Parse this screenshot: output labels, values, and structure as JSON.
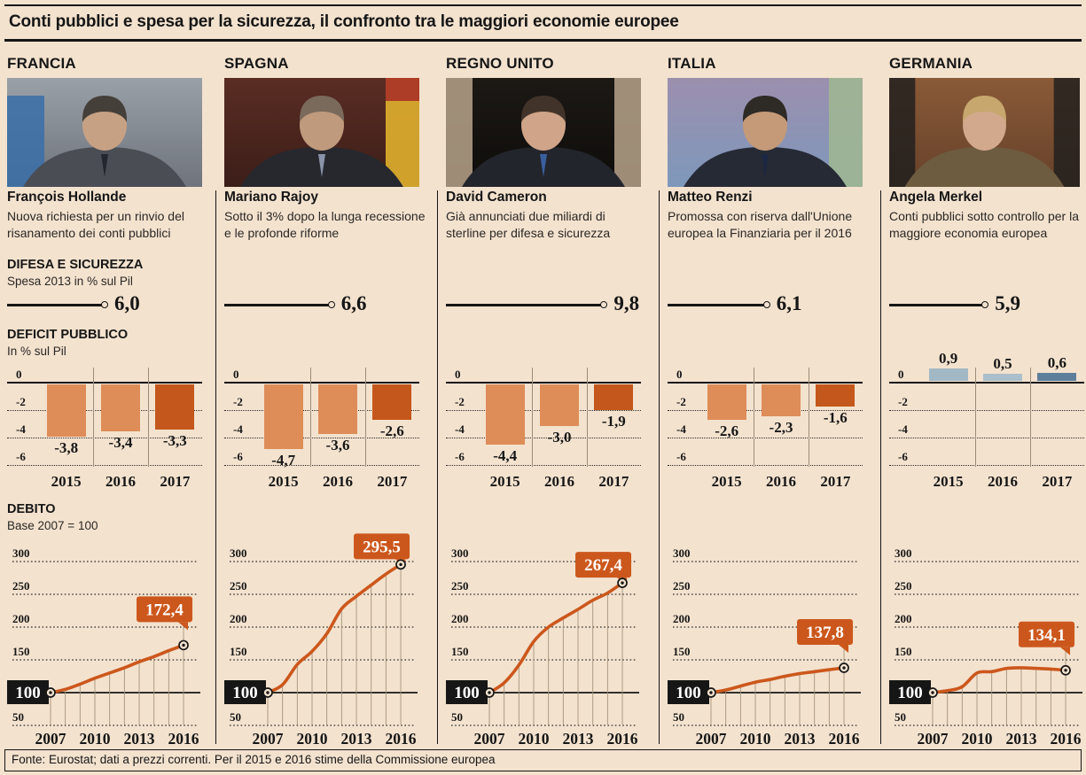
{
  "title": "Conti pubblici e spesa per la sicurezza, il confronto tra le maggiori economie europee",
  "footer": "Fonte: Eurostat; dati a prezzi correnti. Per il 2015 e 2016 stime della Commissione europea",
  "sections": {
    "spesa": {
      "title": "DIFESA E SICUREZZA",
      "subtitle": "Spesa 2013 in % sul Pil"
    },
    "deficit": {
      "title": "DEFICIT PUBBLICO",
      "subtitle": "In % sul Pil"
    },
    "debito": {
      "title": "DEBITO",
      "subtitle": "Base 2007 = 100"
    }
  },
  "colors": {
    "background": "#F3E2CE",
    "ink": "#161616",
    "accent_orange": "#CC571C",
    "bar_light_orange": "#DE8D58",
    "germany_bar_light": "#A2B8C5",
    "germany_bar_mid": "#AABECB",
    "germany_bar_dark": "#5E7F9B",
    "drop_line": "#A5937C",
    "label_text": "#FFFFFF"
  },
  "columns": [
    {
      "country": "FRANCIA",
      "leader": "François Hollande",
      "description": "Nuova richiesta per un rinvio del risanamento dei conti pubblici",
      "photo": {
        "subject": "François Hollande",
        "bg1": "#9aa0a8",
        "bg2": "#6f747c",
        "accent": "#3a6ea8",
        "accent_side": "left",
        "suit": "#4a4d54",
        "skin": "#c7a184",
        "hair": "#453f3a",
        "tie": "#23262e"
      }
    },
    {
      "country": "SPAGNA",
      "leader": "Mariano Rajoy",
      "description": "Sotto il 3% dopo la lunga recessione e le profonde riforme",
      "photo": {
        "subject": "Mariano Rajoy",
        "bg1": "#5a2d24",
        "bg2": "#3c1e18",
        "accent": "#e0b02e",
        "accent2": "#a83226",
        "accent_side": "right",
        "suit": "#26282e",
        "skin": "#c09a7c",
        "hair": "#7a6a5c",
        "tie": "#8a93a8"
      }
    },
    {
      "country": "REGNO UNITO",
      "leader": "David Cameron",
      "description": "Già annunciati due miliardi di sterline per difesa e sicurezza",
      "photo": {
        "subject": "David Cameron",
        "bg1": "#1c1915",
        "bg2": "#0e0c0a",
        "accent": "#c2ad92",
        "accent_side": "sides",
        "suit": "#23252c",
        "skin": "#cfa488",
        "hair": "#42332a",
        "tie": "#3a5f9e"
      }
    },
    {
      "country": "ITALIA",
      "leader": "Matteo Renzi",
      "description": "Promossa con riserva dall'Unione europea la Finanziaria per il 2016",
      "photo": {
        "subject": "Matteo Renzi",
        "bg1": "#9c8fae",
        "bg2": "#7e98bb",
        "accent": "#9eb694",
        "accent_side": "right",
        "suit": "#262a35",
        "skin": "#c49a78",
        "hair": "#2e2a26",
        "tie": "#1c2742"
      }
    },
    {
      "country": "GERMANIA",
      "leader": "Angela Merkel",
      "description": "Conti pubblici sotto controllo per la maggiore economia europea",
      "photo": {
        "subject": "Angela Merkel",
        "bg1": "#8a5a38",
        "bg2": "#66412a",
        "accent": "#1d1d1d",
        "accent_side": "sides",
        "suit": "#6d5c40",
        "skin": "#d2a98c",
        "hair": "#c7a76d",
        "tie": "#6d5c40"
      }
    }
  ],
  "chart_data": [
    {
      "country": "FRANCIA",
      "defense_spending": {
        "type": "lollipop",
        "value": 6.0,
        "label": "6,0",
        "unit": "% Pil 2013"
      },
      "deficit": {
        "type": "bar",
        "categories": [
          "2015",
          "2016",
          "2017"
        ],
        "values": [
          -3.8,
          -3.4,
          -3.3
        ],
        "labels": [
          "-3,8",
          "-3,4",
          "-3,3"
        ],
        "bar_colors": [
          "#DE8D58",
          "#DE8D58",
          "#C4571B"
        ],
        "yticks": [
          0,
          -2,
          -4,
          -6
        ],
        "ylim": [
          0,
          -6
        ]
      },
      "debt": {
        "type": "line",
        "x": [
          2007,
          2008,
          2009,
          2010,
          2011,
          2012,
          2013,
          2014,
          2015,
          2016
        ],
        "values": [
          100,
          105,
          113,
          122,
          130,
          138,
          147,
          155,
          164,
          172.4
        ],
        "end_label": "172,4",
        "base_label": "100",
        "yticks": [
          300,
          250,
          200,
          150,
          100,
          50
        ],
        "xticks": [
          2007,
          2010,
          2013,
          2016
        ],
        "ylim": [
          40,
          310
        ]
      }
    },
    {
      "country": "SPAGNA",
      "defense_spending": {
        "type": "lollipop",
        "value": 6.6,
        "label": "6,6",
        "unit": "% Pil 2013"
      },
      "deficit": {
        "type": "bar",
        "categories": [
          "2015",
          "2016",
          "2017"
        ],
        "values": [
          -4.7,
          -3.6,
          -2.6
        ],
        "labels": [
          "-4,7",
          "-3,6",
          "-2,6"
        ],
        "bar_colors": [
          "#DE8D58",
          "#DE8D58",
          "#C4571B"
        ],
        "yticks": [
          0,
          -2,
          -4,
          -6
        ],
        "ylim": [
          0,
          -6
        ]
      },
      "debt": {
        "type": "line",
        "x": [
          2007,
          2008,
          2009,
          2010,
          2011,
          2012,
          2013,
          2014,
          2015,
          2016
        ],
        "values": [
          100,
          112,
          143,
          163,
          190,
          228,
          247,
          264,
          281,
          295.5
        ],
        "end_label": "295,5",
        "base_label": "100",
        "yticks": [
          300,
          250,
          200,
          150,
          100,
          50
        ],
        "xticks": [
          2007,
          2010,
          2013,
          2016
        ],
        "ylim": [
          40,
          310
        ]
      }
    },
    {
      "country": "REGNO UNITO",
      "defense_spending": {
        "type": "lollipop",
        "value": 9.8,
        "label": "9,8",
        "unit": "% Pil 2013"
      },
      "deficit": {
        "type": "bar",
        "categories": [
          "2015",
          "2016",
          "2017"
        ],
        "values": [
          -4.4,
          -3.0,
          -1.9
        ],
        "labels": [
          "-4,4",
          "-3,0",
          "-1,9"
        ],
        "bar_colors": [
          "#DE8D58",
          "#DE8D58",
          "#C4571B"
        ],
        "yticks": [
          0,
          -2,
          -4,
          -6
        ],
        "ylim": [
          0,
          -6
        ]
      },
      "debt": {
        "type": "line",
        "x": [
          2007,
          2008,
          2009,
          2010,
          2011,
          2012,
          2013,
          2014,
          2015,
          2016
        ],
        "values": [
          100,
          115,
          142,
          178,
          200,
          214,
          227,
          241,
          252,
          267.4
        ],
        "end_label": "267,4",
        "base_label": "100",
        "yticks": [
          300,
          250,
          200,
          150,
          100,
          50
        ],
        "xticks": [
          2007,
          2010,
          2013,
          2016
        ],
        "ylim": [
          40,
          310
        ]
      }
    },
    {
      "country": "ITALIA",
      "defense_spending": {
        "type": "lollipop",
        "value": 6.1,
        "label": "6,1",
        "unit": "% Pil 2013"
      },
      "deficit": {
        "type": "bar",
        "categories": [
          "2015",
          "2016",
          "2017"
        ],
        "values": [
          -2.6,
          -2.3,
          -1.6
        ],
        "labels": [
          "-2,6",
          "-2,3",
          "-1,6"
        ],
        "bar_colors": [
          "#DE8D58",
          "#DE8D58",
          "#C4571B"
        ],
        "yticks": [
          0,
          -2,
          -4,
          -6
        ],
        "ylim": [
          0,
          -6
        ]
      },
      "debt": {
        "type": "line",
        "x": [
          2007,
          2008,
          2009,
          2010,
          2011,
          2012,
          2013,
          2014,
          2015,
          2016
        ],
        "values": [
          100,
          104,
          110,
          116,
          120,
          125,
          129,
          132,
          135,
          137.8
        ],
        "end_label": "137,8",
        "base_label": "100",
        "yticks": [
          300,
          250,
          200,
          150,
          100,
          50
        ],
        "xticks": [
          2007,
          2010,
          2013,
          2016
        ],
        "ylim": [
          40,
          310
        ]
      }
    },
    {
      "country": "GERMANIA",
      "defense_spending": {
        "type": "lollipop",
        "value": 5.9,
        "label": "5,9",
        "unit": "% Pil 2013"
      },
      "deficit": {
        "type": "bar",
        "categories": [
          "2015",
          "2016",
          "2017"
        ],
        "values": [
          0.9,
          0.5,
          0.6
        ],
        "labels": [
          "0,9",
          "0,5",
          "0,6"
        ],
        "bar_colors": [
          "#A2B8C5",
          "#AABECB",
          "#5E7F9B"
        ],
        "yticks": [
          0,
          -2,
          -4,
          -6
        ],
        "ylim": [
          0,
          -6
        ]
      },
      "debt": {
        "type": "line",
        "x": [
          2007,
          2008,
          2009,
          2010,
          2011,
          2012,
          2013,
          2014,
          2015,
          2016
        ],
        "values": [
          100,
          103,
          109,
          130,
          132,
          137,
          138,
          137,
          136,
          134.1
        ],
        "end_label": "134,1",
        "base_label": "100",
        "yticks": [
          300,
          250,
          200,
          150,
          100,
          50
        ],
        "xticks": [
          2007,
          2010,
          2013,
          2016
        ],
        "ylim": [
          40,
          310
        ]
      }
    }
  ]
}
